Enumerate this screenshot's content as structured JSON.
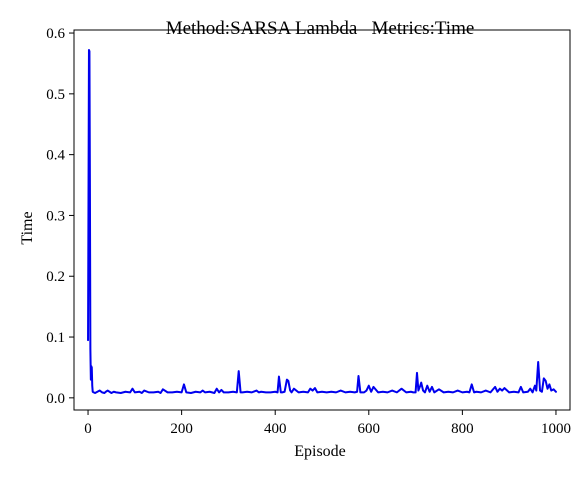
{
  "chart_data": {
    "type": "line",
    "title": "Method:SARSA Lambda   Metrics:Time",
    "xlabel": "Episode",
    "ylabel": "Time",
    "xlim": [
      -30,
      1030
    ],
    "ylim": [
      -0.02,
      0.605
    ],
    "x_ticks": [
      0,
      200,
      400,
      600,
      800,
      1000
    ],
    "y_ticks": [
      0.0,
      0.1,
      0.2,
      0.3,
      0.4,
      0.5,
      0.6
    ],
    "x_tick_labels": [
      "0",
      "200",
      "400",
      "600",
      "800",
      "1000"
    ],
    "y_tick_labels": [
      "0.0",
      "0.1",
      "0.2",
      "0.3",
      "0.4",
      "0.5",
      "0.6"
    ],
    "grid": false,
    "legend": "none",
    "series": [
      {
        "color": "#0000ee",
        "x": [
          0,
          2,
          3,
          4,
          5,
          6,
          7,
          8,
          9,
          10,
          12,
          15,
          20,
          25,
          30,
          35,
          38,
          42,
          50,
          55,
          60,
          70,
          80,
          90,
          95,
          100,
          110,
          115,
          120,
          130,
          140,
          150,
          155,
          160,
          170,
          180,
          190,
          200,
          205,
          210,
          220,
          230,
          240,
          245,
          250,
          260,
          270,
          275,
          280,
          285,
          290,
          300,
          310,
          318,
          322,
          326,
          330,
          340,
          350,
          360,
          365,
          370,
          380,
          390,
          400,
          405,
          408,
          412,
          415,
          420,
          425,
          428,
          432,
          435,
          440,
          450,
          460,
          470,
          475,
          480,
          485,
          490,
          500,
          510,
          520,
          530,
          540,
          550,
          560,
          570,
          575,
          578,
          582,
          590,
          595,
          600,
          605,
          610,
          620,
          630,
          640,
          650,
          660,
          670,
          680,
          690,
          695,
          700,
          703,
          706,
          710,
          712,
          716,
          720,
          725,
          730,
          735,
          740,
          750,
          760,
          770,
          780,
          790,
          800,
          810,
          815,
          820,
          825,
          830,
          840,
          850,
          860,
          870,
          875,
          880,
          885,
          890,
          900,
          910,
          920,
          925,
          930,
          940,
          945,
          950,
          955,
          958,
          962,
          966,
          970,
          974,
          978,
          982,
          986,
          990,
          995,
          1000
        ],
        "y": [
          0.095,
          0.572,
          0.57,
          0.35,
          0.08,
          0.03,
          0.052,
          0.05,
          0.02,
          0.01,
          0.009,
          0.008,
          0.01,
          0.012,
          0.009,
          0.008,
          0.01,
          0.012,
          0.008,
          0.01,
          0.009,
          0.008,
          0.01,
          0.009,
          0.015,
          0.009,
          0.01,
          0.008,
          0.012,
          0.009,
          0.009,
          0.01,
          0.008,
          0.014,
          0.009,
          0.009,
          0.01,
          0.009,
          0.022,
          0.009,
          0.008,
          0.01,
          0.009,
          0.012,
          0.009,
          0.01,
          0.008,
          0.015,
          0.009,
          0.013,
          0.009,
          0.009,
          0.01,
          0.009,
          0.044,
          0.009,
          0.009,
          0.01,
          0.009,
          0.012,
          0.009,
          0.01,
          0.009,
          0.009,
          0.01,
          0.009,
          0.035,
          0.009,
          0.009,
          0.01,
          0.03,
          0.028,
          0.012,
          0.009,
          0.015,
          0.009,
          0.01,
          0.009,
          0.015,
          0.012,
          0.016,
          0.009,
          0.01,
          0.009,
          0.01,
          0.009,
          0.012,
          0.009,
          0.01,
          0.009,
          0.01,
          0.036,
          0.009,
          0.009,
          0.012,
          0.02,
          0.01,
          0.018,
          0.009,
          0.01,
          0.009,
          0.012,
          0.009,
          0.015,
          0.009,
          0.01,
          0.009,
          0.009,
          0.041,
          0.012,
          0.02,
          0.025,
          0.012,
          0.009,
          0.02,
          0.01,
          0.018,
          0.009,
          0.014,
          0.009,
          0.01,
          0.009,
          0.012,
          0.009,
          0.01,
          0.009,
          0.022,
          0.009,
          0.01,
          0.009,
          0.012,
          0.009,
          0.018,
          0.01,
          0.015,
          0.012,
          0.016,
          0.009,
          0.01,
          0.009,
          0.018,
          0.009,
          0.01,
          0.015,
          0.009,
          0.02,
          0.012,
          0.059,
          0.012,
          0.01,
          0.032,
          0.028,
          0.015,
          0.022,
          0.012,
          0.014,
          0.01
        ]
      }
    ]
  }
}
